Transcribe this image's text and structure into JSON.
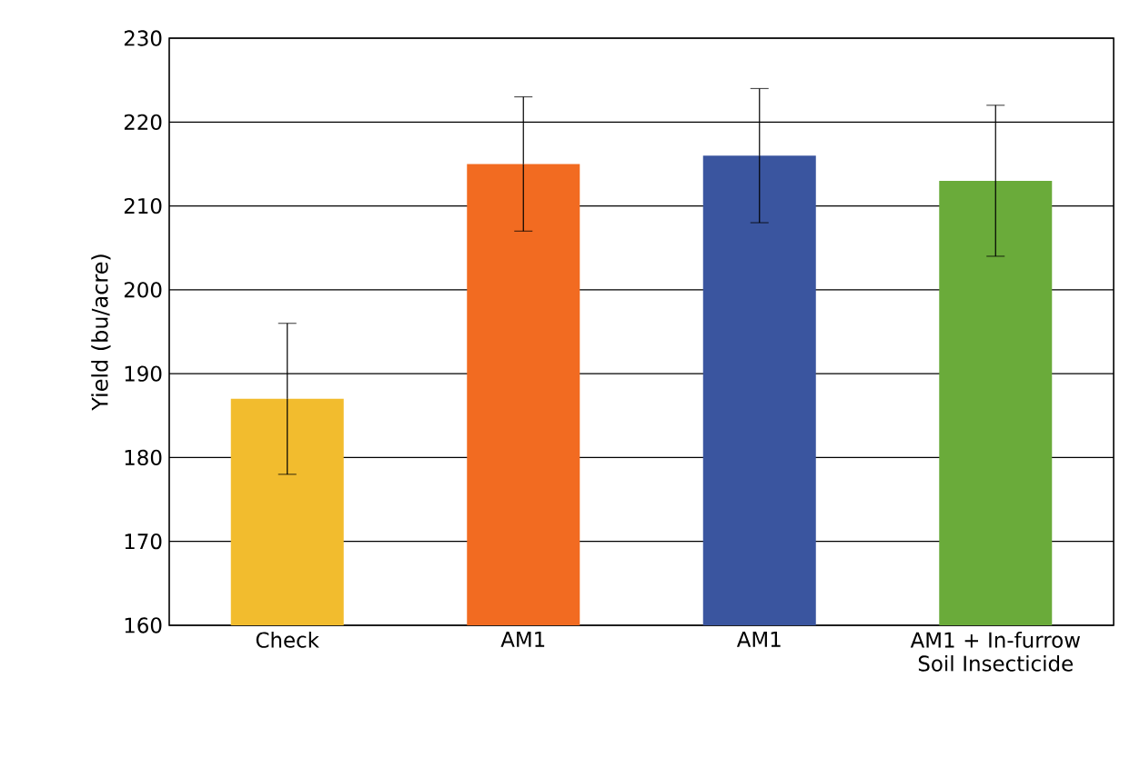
{
  "chart_data": {
    "type": "bar",
    "ylabel": "Yield (bu/acre)",
    "categories": [
      "Check",
      "AM1",
      "AM1",
      "AM1 + In-furrow Soil Insecticide"
    ],
    "values": [
      187,
      215,
      216,
      213
    ],
    "errors": [
      [
        178,
        196
      ],
      [
        207,
        223
      ],
      [
        208,
        224
      ],
      [
        204,
        222
      ]
    ],
    "colors": [
      "#f2bc2e",
      "#f26b21",
      "#3a559f",
      "#6aab3a"
    ],
    "ylim": [
      160,
      230
    ],
    "yticks": [
      160,
      170,
      180,
      190,
      200,
      210,
      220,
      230
    ],
    "grid": "y"
  }
}
